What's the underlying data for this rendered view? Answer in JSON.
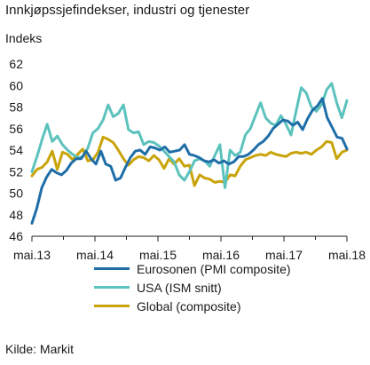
{
  "title": "Innkjøpssjefindekser, industri og tjenester",
  "source": "Kilde: Markit",
  "chart_data": {
    "type": "line",
    "title": "Innkjøpssjefindekser, industri og tjenester",
    "ylabel": "Indeks",
    "xlabel": "",
    "ylim": [
      46,
      62
    ],
    "yticks": [
      46,
      48,
      50,
      52,
      54,
      56,
      58,
      60,
      62
    ],
    "xtick_labels": [
      "mai.13",
      "mai.14",
      "mai.15",
      "mai.16",
      "mai.17",
      "mai.18"
    ],
    "xtick_index": [
      0,
      12,
      24,
      36,
      48,
      60
    ],
    "grid": false,
    "legend_position": "bottom",
    "series": [
      {
        "name": "Eurosonen (PMI composite)",
        "color": "#1f6ea8",
        "values": [
          47.2,
          48.6,
          50.5,
          51.5,
          52.2,
          51.9,
          51.7,
          52.1,
          52.8,
          53.2,
          53.2,
          53.9,
          53.2,
          52.7,
          53.9,
          52.7,
          52.5,
          51.2,
          51.4,
          52.4,
          53.3,
          53.9,
          54.0,
          53.6,
          54.3,
          54.2,
          54.0,
          54.3,
          53.8,
          53.9,
          54.0,
          54.5,
          53.6,
          53.5,
          53.3,
          53.0,
          52.9,
          53.1,
          52.8,
          53.0,
          52.7,
          52.9,
          53.4,
          53.4,
          53.6,
          54.0,
          54.5,
          54.8,
          55.3,
          56.0,
          56.4,
          56.8,
          56.7,
          56.3,
          56.6,
          55.9,
          56.9,
          57.7,
          58.1,
          58.8,
          57.0,
          56.1,
          55.2,
          55.1,
          54.1
        ],
        "_x": null
      },
      {
        "name": "USA (ISM snitt)",
        "color": "#5cc2bd",
        "values": [
          52.0,
          53.4,
          55.0,
          56.4,
          54.8,
          55.3,
          54.5,
          54.0,
          53.6,
          53.3,
          53.4,
          54.2,
          55.6,
          56.0,
          56.8,
          58.2,
          57.1,
          57.4,
          58.2,
          55.9,
          55.6,
          55.7,
          54.5,
          54.8,
          54.7,
          54.4,
          53.9,
          53.4,
          52.9,
          51.7,
          51.2,
          52.0,
          53.0,
          53.2,
          53.0,
          52.5,
          53.5,
          54.5,
          50.5,
          54.0,
          53.5,
          53.8,
          55.4,
          56.0,
          57.2,
          58.4,
          57.0,
          56.5,
          56.3,
          57.2,
          56.4,
          55.4,
          57.6,
          59.8,
          59.3,
          58.0,
          57.6,
          58.2,
          59.6,
          60.2,
          58.4,
          57.0,
          58.6
        ],
        "_x": null
      },
      {
        "name": "Global (composite)",
        "color": "#c9a30a",
        "values": [
          51.6,
          52.2,
          52.4,
          52.9,
          53.9,
          52.2,
          53.8,
          53.6,
          53.1,
          53.6,
          54.1,
          53.0,
          53.1,
          53.8,
          55.2,
          55.0,
          54.7,
          54.0,
          53.2,
          52.6,
          53.1,
          53.4,
          53.3,
          53.0,
          53.5,
          53.1,
          52.3,
          53.2,
          52.7,
          53.2,
          52.5,
          52.6,
          50.7,
          51.7,
          51.4,
          51.3,
          51.0,
          51.1,
          51.0,
          51.7,
          51.6,
          52.5,
          53.1,
          53.3,
          53.5,
          53.6,
          53.5,
          53.8,
          53.6,
          53.5,
          53.4,
          53.7,
          53.8,
          53.7,
          53.8,
          53.6,
          54.0,
          54.3,
          54.8,
          54.7,
          53.2,
          53.8,
          54.0
        ],
        "_x": null
      }
    ]
  }
}
